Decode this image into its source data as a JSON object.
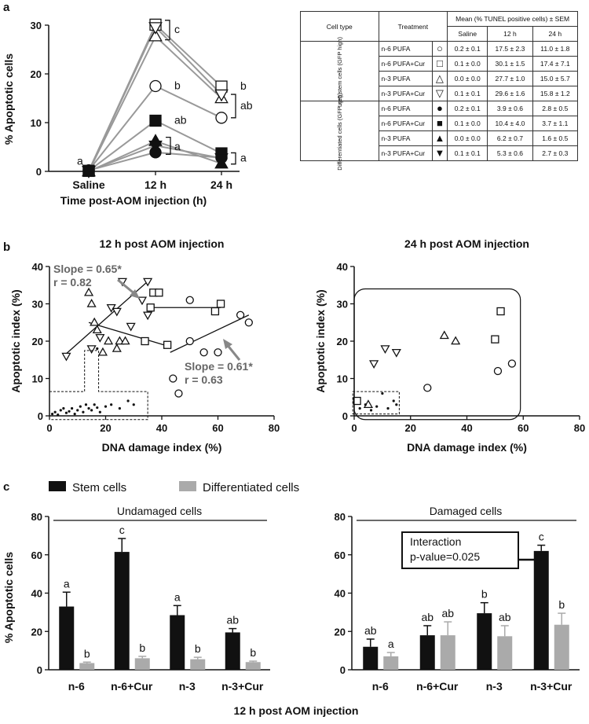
{
  "panel_labels": {
    "a": "a",
    "b": "b",
    "c": "c"
  },
  "table": {
    "header_cell_type": "Cell type",
    "header_treatment": "Treatment",
    "header_mean": "Mean (% TUNEL positive cells) ± SEM",
    "columns": [
      "Saline",
      "12 h",
      "24 h"
    ],
    "groups": [
      {
        "label": "Lgr5 stem cells (GFP high)",
        "rows": [
          {
            "treatment": "n-6 PUFA",
            "symbol": "○",
            "values": [
              "0.2 ± 0.1",
              "17.5 ± 2.3",
              "11.0 ± 1.8"
            ]
          },
          {
            "treatment": "n-6 PUFA+Cur",
            "symbol": "□",
            "values": [
              "0.1 ± 0.0",
              "30.1 ± 1.5",
              "17.4 ± 7.1"
            ]
          },
          {
            "treatment": "n-3 PUFA",
            "symbol": "△",
            "values": [
              "0.0 ± 0.0",
              "27.7 ± 1.0",
              "15.0 ± 5.7"
            ]
          },
          {
            "treatment": "n-3 PUFA+Cur",
            "symbol": "▽",
            "values": [
              "0.1 ± 0.1",
              "29.6 ± 1.6",
              "15.8 ± 1.2"
            ]
          }
        ]
      },
      {
        "label": "Differentiated cells (GFP neg)",
        "rows": [
          {
            "treatment": "n-6 PUFA",
            "symbol": "●",
            "values": [
              "0.2 ± 0.1",
              "3.9 ± 0.6",
              "2.8 ± 0.5"
            ]
          },
          {
            "treatment": "n-6 PUFA+Cur",
            "symbol": "■",
            "values": [
              "0.1 ± 0.0",
              "10.4 ± 4.0",
              "3.7 ± 1.1"
            ]
          },
          {
            "treatment": "n-3 PUFA",
            "symbol": "▲",
            "values": [
              "0.0 ± 0.0",
              "6.2 ± 0.7",
              "1.6 ± 0.5"
            ]
          },
          {
            "treatment": "n-3 PUFA+Cur",
            "symbol": "▼",
            "values": [
              "0.1 ± 0.1",
              "5.3 ± 0.6",
              "2.7 ± 0.3"
            ]
          }
        ]
      }
    ]
  },
  "chart_data": [
    {
      "id": "a",
      "type": "line",
      "categories": [
        "Saline",
        "12 h",
        "24 h"
      ],
      "xlabel": "Time post-AOM injection (h)",
      "ylabel": "% Apoptotic cells",
      "ylim": [
        0,
        30
      ],
      "yticks": [
        "0",
        "10",
        "20",
        "30"
      ],
      "series": [
        {
          "name": "n-6 PUFA",
          "marker": "circle-open",
          "values": [
            0.2,
            17.5,
            11.0
          ]
        },
        {
          "name": "n-6 PUFA+Cur",
          "marker": "square-open",
          "values": [
            0.1,
            30.1,
            17.4
          ]
        },
        {
          "name": "n-3 PUFA",
          "marker": "triangle-up-open",
          "values": [
            0.0,
            27.7,
            15.0
          ]
        },
        {
          "name": "n-3 PUFA+Cur",
          "marker": "triangle-down-open",
          "values": [
            0.1,
            29.6,
            15.8
          ]
        },
        {
          "name": "n-6 PUFA",
          "marker": "circle-filled",
          "values": [
            0.2,
            3.9,
            2.8
          ]
        },
        {
          "name": "n-6 PUFA+Cur",
          "marker": "square-filled",
          "values": [
            0.1,
            10.4,
            3.7
          ]
        },
        {
          "name": "n-3 PUFA",
          "marker": "triangle-up-filled",
          "values": [
            0.0,
            6.2,
            1.6
          ]
        },
        {
          "name": "n-3 PUFA+Cur",
          "marker": "triangle-down-filled",
          "values": [
            0.1,
            5.3,
            2.7
          ]
        }
      ],
      "annotations": [
        {
          "text": "a",
          "x": "Saline",
          "y": 2
        },
        {
          "text": "c",
          "x": "12 h",
          "y": 29
        },
        {
          "text": "b",
          "x": "12 h",
          "y": 17.5
        },
        {
          "text": "ab",
          "x": "12 h",
          "y": 10.4
        },
        {
          "text": "a",
          "x": "12 h",
          "y": 5
        },
        {
          "text": "b",
          "x": "24 h",
          "y": 17.4
        },
        {
          "text": "ab",
          "x": "24 h",
          "y": 13.4
        },
        {
          "text": "a",
          "x": "24 h",
          "y": 2.7
        }
      ]
    },
    {
      "id": "b1",
      "type": "scatter",
      "title": "12 h post AOM injection",
      "xlabel": "DNA damage index (%)",
      "ylabel": "Apoptotic index (%)",
      "xlim": [
        0,
        80
      ],
      "ylim": [
        0,
        40
      ],
      "xticks": [
        "0",
        "20",
        "40",
        "60",
        "80"
      ],
      "yticks": [
        "0",
        "10",
        "20",
        "30",
        "40"
      ],
      "series": [
        {
          "name": "n-6 PUFA",
          "marker": "circle-open",
          "points": [
            [
              44,
              10
            ],
            [
              46,
              6
            ],
            [
              50,
              20
            ],
            [
              50,
              31
            ],
            [
              55,
              17
            ],
            [
              60,
              17
            ],
            [
              68,
              27
            ],
            [
              71,
              25
            ]
          ]
        },
        {
          "name": "n-6 PUFA+Cur",
          "marker": "square-open",
          "points": [
            [
              34,
              20
            ],
            [
              36,
              29
            ],
            [
              37,
              33
            ],
            [
              39,
              33
            ],
            [
              42,
              19
            ],
            [
              59,
              28
            ],
            [
              61,
              30
            ]
          ]
        },
        {
          "name": "n-3 PUFA",
          "marker": "triangle-up-open",
          "points": [
            [
              14,
              33
            ],
            [
              15,
              30
            ],
            [
              16,
              25
            ],
            [
              17,
              23
            ],
            [
              19,
              17
            ],
            [
              21,
              20
            ],
            [
              24,
              18
            ],
            [
              25,
              20
            ],
            [
              27,
              20
            ]
          ]
        },
        {
          "name": "n-3 PUFA+Cur",
          "marker": "triangle-down-open",
          "points": [
            [
              6,
              16
            ],
            [
              15,
              18
            ],
            [
              18,
              21
            ],
            [
              22,
              29
            ],
            [
              24,
              28
            ],
            [
              26,
              36
            ],
            [
              29,
              24
            ],
            [
              33,
              31
            ],
            [
              35,
              36
            ],
            [
              35,
              27
            ]
          ]
        },
        {
          "name": "Differentiated cells",
          "marker": "dot",
          "points": [
            [
              1,
              0.5
            ],
            [
              2,
              1
            ],
            [
              3,
              0.3
            ],
            [
              4,
              1.5
            ],
            [
              5,
              2
            ],
            [
              6,
              0.8
            ],
            [
              7,
              1.2
            ],
            [
              8,
              2
            ],
            [
              9,
              0.5
            ],
            [
              10,
              1.5
            ],
            [
              11,
              2.5
            ],
            [
              12,
              1
            ],
            [
              13,
              3
            ],
            [
              14,
              2
            ],
            [
              15,
              1.5
            ],
            [
              16,
              3
            ],
            [
              17,
              2.2
            ],
            [
              18,
              1
            ],
            [
              20,
              2.5
            ],
            [
              22,
              3
            ],
            [
              25,
              2
            ],
            [
              28,
              4
            ],
            [
              30,
              3
            ],
            [
              17,
              18
            ]
          ]
        }
      ],
      "fits": [
        {
          "x": [
            5,
            35
          ],
          "y": [
            16,
            36
          ]
        },
        {
          "x": [
            14,
            43
          ],
          "y": [
            25,
            18.5
          ]
        },
        {
          "x": [
            36,
            61
          ],
          "y": [
            29,
            29
          ]
        },
        {
          "x": [
            43,
            71
          ],
          "y": [
            17,
            27
          ]
        }
      ],
      "annotations": [
        {
          "text": "Slope = 0.65",
          "sup": "*",
          "line2": "r = 0.82"
        },
        {
          "text": "Slope = 0.61",
          "sup": "*",
          "line2": "r = 0.63"
        }
      ]
    },
    {
      "id": "b2",
      "type": "scatter",
      "title": "24 h post AOM injection",
      "xlabel": "DNA damage index (%)",
      "ylabel": "Apoptotic index (%)",
      "xlim": [
        0,
        80
      ],
      "ylim": [
        0,
        40
      ],
      "xticks": [
        "0",
        "20",
        "40",
        "60",
        "80"
      ],
      "yticks": [
        "0",
        "10",
        "20",
        "30",
        "40"
      ],
      "series": [
        {
          "name": "n-6 PUFA",
          "marker": "circle-open",
          "points": [
            [
              26,
              7.5
            ],
            [
              51,
              12
            ],
            [
              56,
              14
            ]
          ]
        },
        {
          "name": "n-6 PUFA+Cur",
          "marker": "square-open",
          "points": [
            [
              1,
              4
            ],
            [
              50,
              20.5
            ],
            [
              52,
              28
            ]
          ]
        },
        {
          "name": "n-3 PUFA",
          "marker": "triangle-up-open",
          "points": [
            [
              5,
              3
            ],
            [
              32,
              21.5
            ],
            [
              36,
              20
            ]
          ]
        },
        {
          "name": "n-3 PUFA+Cur",
          "marker": "triangle-down-open",
          "points": [
            [
              7,
              14
            ],
            [
              11,
              18
            ],
            [
              15,
              17
            ]
          ]
        },
        {
          "name": "Differentiated cells",
          "marker": "dot",
          "points": [
            [
              2,
              2
            ],
            [
              4,
              3
            ],
            [
              6,
              1.5
            ],
            [
              8,
              2.5
            ],
            [
              10,
              6
            ],
            [
              12,
              2
            ],
            [
              14,
              4
            ],
            [
              15,
              3
            ]
          ]
        }
      ]
    },
    {
      "id": "c1",
      "type": "bar",
      "title": "Undamaged cells",
      "categories": [
        "n-6",
        "n-6+Cur",
        "n-3",
        "n-3+Cur"
      ],
      "ylabel": "% Apoptotic cells",
      "ylim": [
        0,
        80
      ],
      "yticks": [
        "0",
        "20",
        "40",
        "60",
        "80"
      ],
      "series": [
        {
          "name": "Stem cells",
          "values": [
            33,
            61.5,
            28.5,
            19.5
          ],
          "errors": [
            7.5,
            7,
            5,
            2
          ],
          "labels": [
            "a",
            "c",
            "a",
            "ab"
          ]
        },
        {
          "name": "Differentiated cells",
          "values": [
            3.5,
            6,
            5.5,
            4
          ],
          "errors": [
            0.5,
            1,
            1,
            0.5
          ],
          "labels": [
            "b",
            "b",
            "b",
            "b"
          ]
        }
      ]
    },
    {
      "id": "c2",
      "type": "bar",
      "title": "Damaged cells",
      "categories": [
        "n-6",
        "n-6+Cur",
        "n-3",
        "n-3+Cur"
      ],
      "ylim": [
        0,
        80
      ],
      "yticks": [
        "0",
        "20",
        "40",
        "60",
        "80"
      ],
      "series": [
        {
          "name": "Stem cells",
          "values": [
            12,
            18,
            29.5,
            62
          ],
          "errors": [
            4,
            5,
            5.5,
            3
          ],
          "labels": [
            "ab",
            "ab",
            "b",
            "c"
          ]
        },
        {
          "name": "Differentiated cells",
          "values": [
            7,
            18,
            17.5,
            23.5
          ],
          "errors": [
            2,
            7,
            5.5,
            6
          ],
          "labels": [
            "a",
            "ab",
            "ab",
            "b"
          ]
        }
      ],
      "annotation": {
        "line1": "Interaction",
        "line2": "p-value=0.025"
      }
    }
  ],
  "legend_c": {
    "stem": "Stem cells",
    "diff": "Differentiated cells"
  },
  "caption_c": "12 h post AOM injection"
}
